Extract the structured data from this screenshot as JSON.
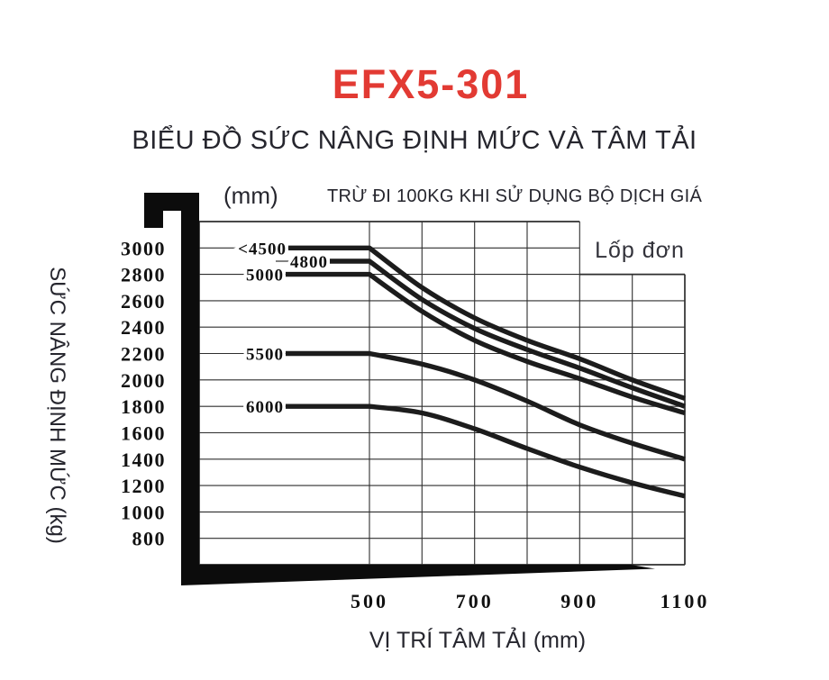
{
  "header": {
    "model": "EFX5-301",
    "title": "BIỂU ĐỒ SỨC NÂNG ĐỊNH MỨC VÀ TÂM TẢI"
  },
  "chart": {
    "mast_unit_label": "(mm)",
    "note": "TRỪ ĐI 100KG KHI SỬ DỤNG BỘ DỊCH GIÁ",
    "legend_label": "Lốp đơn",
    "x_axis_title": "VỊ TRÍ TÂM TẢI (mm)",
    "y_axis_title": "SỨC NÂNG ĐỊNH MỨC (kg)"
  },
  "colors": {
    "model_red": "#e23a33",
    "ink": "#1c1c1c",
    "grid": "#2e2e2e"
  },
  "chart_data": {
    "type": "line",
    "title": "BIỂU ĐỒ SỨC NÂNG ĐỊNH MỨC VÀ TÂM TẢI",
    "model": "EFX5-301",
    "note": "TRỪ ĐI 100KG KHI SỬ DỤNG BỘ DỊCH GIÁ",
    "legend": "Lốp đơn",
    "legend_position": "top-right-inset",
    "grid": true,
    "xlabel": "VỊ TRÍ TÂM TẢI (mm)",
    "ylabel": "SỨC NÂNG ĐỊNH MỨC (kg)",
    "x": [
      500,
      600,
      700,
      800,
      900,
      1000,
      1100
    ],
    "x_tick_labels": [
      "500",
      "700",
      "900",
      "1100"
    ],
    "x_tick_values": [
      500,
      700,
      900,
      1100
    ],
    "y_ticks": [
      800,
      1000,
      1200,
      1400,
      1600,
      1800,
      2000,
      2200,
      2400,
      2600,
      2800,
      3000
    ],
    "xlim": [
      500,
      1100
    ],
    "ylim": [
      600,
      3200
    ],
    "series_note": "mast height labels in mm",
    "series": [
      {
        "name": "<4500",
        "values": [
          3000,
          2700,
          2470,
          2300,
          2160,
          2000,
          1860
        ]
      },
      {
        "name": "4800",
        "values": [
          2900,
          2610,
          2390,
          2230,
          2090,
          1940,
          1800
        ]
      },
      {
        "name": "5000",
        "values": [
          2800,
          2520,
          2300,
          2140,
          2010,
          1870,
          1750
        ]
      },
      {
        "name": "5500",
        "values": [
          2200,
          2120,
          2000,
          1840,
          1660,
          1520,
          1400
        ]
      },
      {
        "name": "6000",
        "values": [
          1800,
          1750,
          1630,
          1480,
          1340,
          1220,
          1120
        ]
      }
    ]
  }
}
